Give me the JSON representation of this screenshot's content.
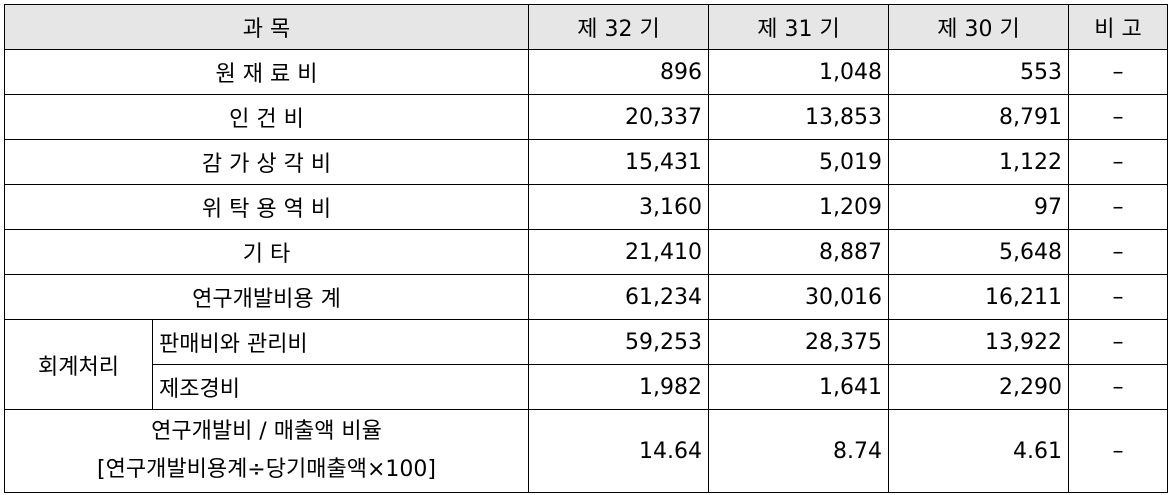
{
  "header": {
    "item": "과      목",
    "p32": "제 32 기",
    "p31": "제 31 기",
    "p30": "제 30 기",
    "note": "비 고"
  },
  "rows": [
    {
      "label": "원 재 료 비",
      "p32": "896",
      "p31": "1,048",
      "p30": "553",
      "note": "–"
    },
    {
      "label": "인      건      비",
      "p32": "20,337",
      "p31": "13,853",
      "p30": "8,791",
      "note": "–"
    },
    {
      "label": "감 가 상 각 비",
      "p32": "15,431",
      "p31": "5,019",
      "p30": "1,122",
      "note": "–"
    },
    {
      "label": "위 탁 용 역 비",
      "p32": "3,160",
      "p31": "1,209",
      "p30": "97",
      "note": "–"
    },
    {
      "label": "기                   타",
      "p32": "21,410",
      "p31": "8,887",
      "p30": "5,648",
      "note": "–"
    },
    {
      "label": "연구개발비용 계",
      "p32": "61,234",
      "p31": "30,016",
      "p30": "16,211",
      "note": "–"
    }
  ],
  "accounting": {
    "group_label": "회계처리",
    "sub": [
      {
        "label": "판매비와 관리비",
        "p32": "59,253",
        "p31": "28,375",
        "p30": "13,922",
        "note": "–"
      },
      {
        "label": "제조경비",
        "p32": "1,982",
        "p31": "1,641",
        "p30": "2,290",
        "note": "–"
      }
    ]
  },
  "ratio": {
    "label_line1": "연구개발비 / 매출액 비율",
    "label_line2": "[연구개발비용계÷당기매출액×100]",
    "p32": "14.64",
    "p31": "8.74",
    "p30": "4.61",
    "note": "–"
  }
}
